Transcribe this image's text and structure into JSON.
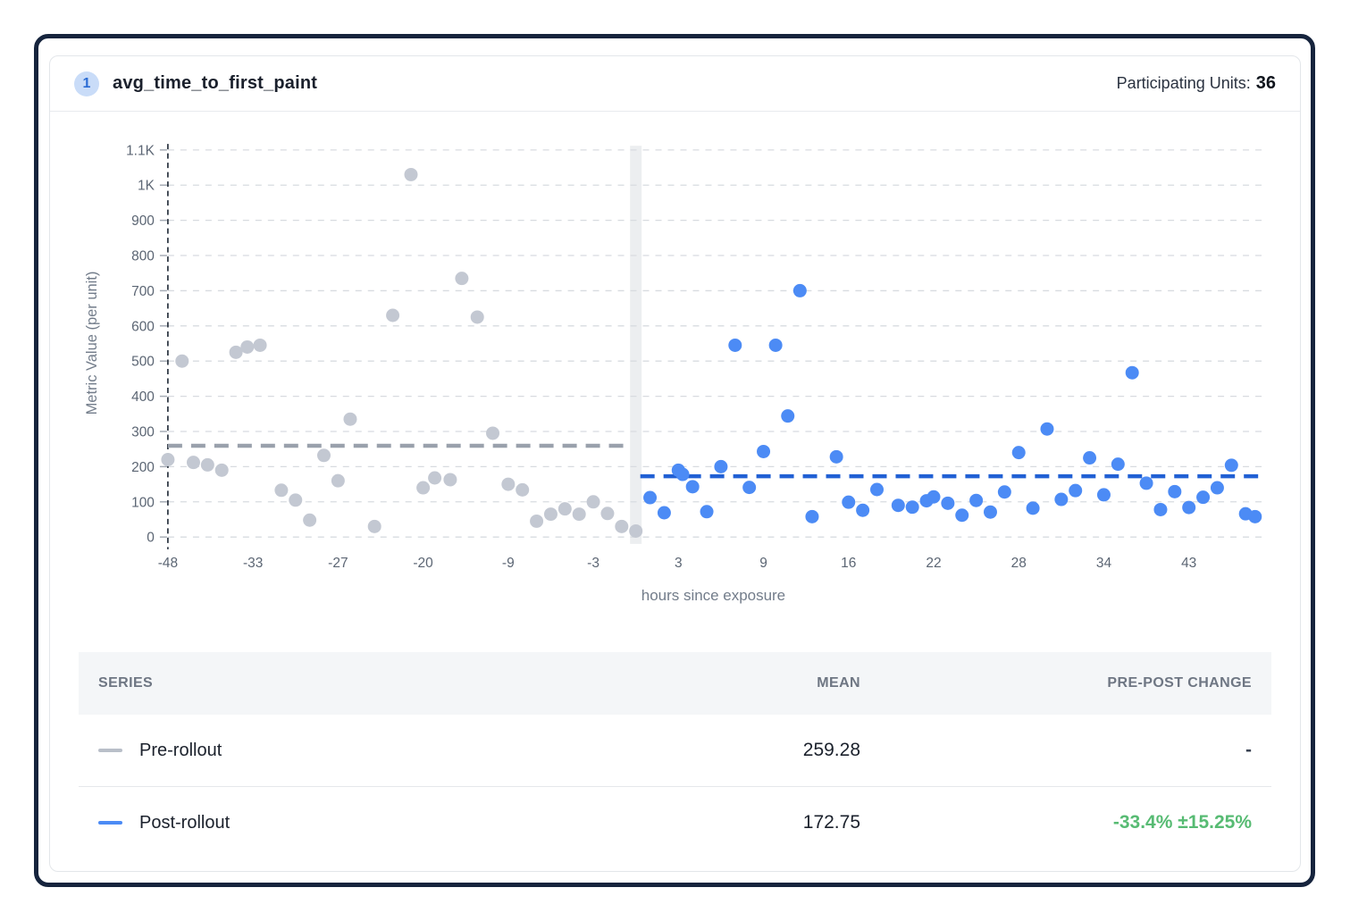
{
  "header": {
    "badge": "1",
    "title": "avg_time_to_first_paint",
    "participating_label": "Participating Units:",
    "participating_value": "36"
  },
  "chart_data": {
    "type": "scatter",
    "title": "avg_time_to_first_paint",
    "xlabel": "hours since exposure",
    "ylabel": "Metric Value (per unit)",
    "ylim": [
      0,
      1100
    ],
    "grid": "horizontal-dashed",
    "x_tick_values": [
      -48,
      -33,
      -27,
      -20,
      -9,
      -3,
      3,
      9,
      16,
      22,
      28,
      34,
      43
    ],
    "x_tick_labels": [
      "-48",
      "-33",
      "-27",
      "-20",
      "-9",
      "-3",
      "3",
      "9",
      "16",
      "22",
      "28",
      "34",
      "43"
    ],
    "y_ticks": [
      {
        "v": 0,
        "label": "0"
      },
      {
        "v": 100,
        "label": "100"
      },
      {
        "v": 200,
        "label": "200"
      },
      {
        "v": 300,
        "label": "300"
      },
      {
        "v": 400,
        "label": "400"
      },
      {
        "v": 500,
        "label": "500"
      },
      {
        "v": 600,
        "label": "600"
      },
      {
        "v": 700,
        "label": "700"
      },
      {
        "v": 800,
        "label": "800"
      },
      {
        "v": 900,
        "label": "900"
      },
      {
        "v": 1000,
        "label": "1K"
      },
      {
        "v": 1100,
        "label": "1.1K"
      }
    ],
    "rollout_marker_hour": 0,
    "pre_window_start_hour": -48,
    "series": [
      {
        "name": "Pre-rollout",
        "period": "pre",
        "color": "#c3c8d2",
        "mean": 259.28,
        "mean_line_color": "#9aa1ac",
        "points": [
          [
            -48,
            220
          ],
          [
            -45.5,
            500
          ],
          [
            -43.5,
            212
          ],
          [
            -41,
            205
          ],
          [
            -38.5,
            190
          ],
          [
            -36,
            525
          ],
          [
            -34,
            540
          ],
          [
            -32.5,
            545
          ],
          [
            -31,
            133
          ],
          [
            -30,
            105
          ],
          [
            -29,
            48
          ],
          [
            -28,
            232
          ],
          [
            -27,
            160
          ],
          [
            -26,
            335
          ],
          [
            -24,
            30
          ],
          [
            -22.5,
            630
          ],
          [
            -21,
            1030
          ],
          [
            -20,
            140
          ],
          [
            -18.5,
            168
          ],
          [
            -16.5,
            163
          ],
          [
            -15,
            735
          ],
          [
            -13,
            625
          ],
          [
            -11,
            295
          ],
          [
            -9,
            150
          ],
          [
            -8,
            134
          ],
          [
            -7,
            45
          ],
          [
            -6,
            65
          ],
          [
            -5,
            80
          ],
          [
            -4,
            65
          ],
          [
            -3,
            100
          ],
          [
            -2,
            67
          ],
          [
            -1,
            30
          ],
          [
            0,
            17
          ]
        ]
      },
      {
        "name": "Post-rollout",
        "period": "post",
        "color": "#4c8bf5",
        "mean": 172.75,
        "mean_line_color": "#2160d4",
        "points": [
          [
            1,
            112
          ],
          [
            2,
            69
          ],
          [
            3,
            190
          ],
          [
            3.3,
            178
          ],
          [
            4,
            143
          ],
          [
            5,
            72
          ],
          [
            6,
            200
          ],
          [
            7,
            545
          ],
          [
            8,
            141
          ],
          [
            9,
            243
          ],
          [
            10,
            545
          ],
          [
            11,
            344
          ],
          [
            12,
            700
          ],
          [
            13,
            58
          ],
          [
            15,
            228
          ],
          [
            16,
            99
          ],
          [
            17,
            76
          ],
          [
            18,
            135
          ],
          [
            19.5,
            90
          ],
          [
            20.5,
            85
          ],
          [
            21.5,
            103
          ],
          [
            22,
            114
          ],
          [
            23,
            96
          ],
          [
            24,
            62
          ],
          [
            25,
            104
          ],
          [
            26,
            71
          ],
          [
            27,
            128
          ],
          [
            28,
            240
          ],
          [
            29,
            82
          ],
          [
            30,
            307
          ],
          [
            31,
            107
          ],
          [
            32,
            132
          ],
          [
            33,
            225
          ],
          [
            34,
            120
          ],
          [
            35.5,
            207
          ],
          [
            37,
            467
          ],
          [
            38.5,
            153
          ],
          [
            40,
            78
          ],
          [
            41.5,
            129
          ],
          [
            43,
            84
          ],
          [
            44.5,
            113
          ],
          [
            46,
            140
          ],
          [
            47.5,
            204
          ],
          [
            49,
            66
          ],
          [
            50,
            58
          ]
        ]
      }
    ]
  },
  "table": {
    "columns": [
      "SERIES",
      "MEAN",
      "PRE-POST CHANGE"
    ],
    "rows": [
      {
        "name": "Pre-rollout",
        "mean": "259.28",
        "change": "-",
        "swatch_color": "#b9bfc9",
        "change_color": "#3a4353"
      },
      {
        "name": "Post-rollout",
        "mean": "172.75",
        "change": "-33.4% ±15.25%",
        "swatch_color": "#4c8bf5",
        "change_color": "#57bb73"
      }
    ]
  },
  "colors": {
    "frame_navy": "#16243d",
    "badge_bg": "#c9dcf8",
    "badge_text": "#2b6cd4",
    "point_gray": "#c3c8d2",
    "point_blue": "#4c8bf5",
    "mean_gray": "#9aa1ac",
    "mean_blue": "#2160d4",
    "change_green": "#57bb73",
    "gridline": "#d8dbe0",
    "rollout_band": "#eceef0",
    "event_line": "#1c2633",
    "axis_text": "#5c6674",
    "axis_label_text": "#727c8a"
  }
}
